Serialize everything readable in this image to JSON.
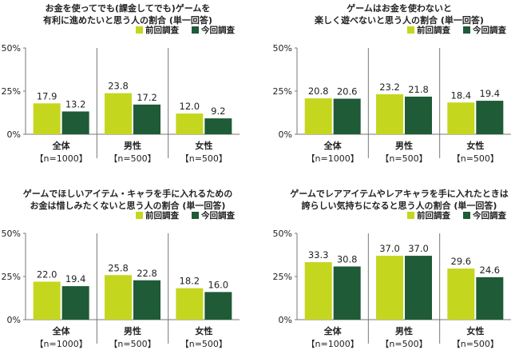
{
  "chart_data": [
    {
      "type": "bar",
      "title": "お金を使ってでも(課金してでも)ゲームを\n有利に進めたいと思う人の割合 (単一回答)",
      "categories": [
        "全体",
        "男性",
        "女性"
      ],
      "sample_sizes": [
        "【n=1000】",
        "【n=500】",
        "【n=500】"
      ],
      "series": [
        {
          "name": "前回調査",
          "values": [
            17.9,
            23.8,
            12.0
          ]
        },
        {
          "name": "今回調査",
          "values": [
            13.2,
            17.2,
            9.2
          ]
        }
      ],
      "y_ticks": [
        "0%",
        "25%",
        "50%"
      ],
      "ylim": [
        0,
        50
      ],
      "legend_position": "top-right"
    },
    {
      "type": "bar",
      "title": "ゲームはお金を使わないと\n楽しく遊べないと思う人の割合 (単一回答)",
      "categories": [
        "全体",
        "男性",
        "女性"
      ],
      "sample_sizes": [
        "【n=1000】",
        "【n=500】",
        "【n=500】"
      ],
      "series": [
        {
          "name": "前回調査",
          "values": [
            20.8,
            23.2,
            18.4
          ]
        },
        {
          "name": "今回調査",
          "values": [
            20.6,
            21.8,
            19.4
          ]
        }
      ],
      "y_ticks": [
        "0%",
        "25%",
        "50%"
      ],
      "ylim": [
        0,
        50
      ],
      "legend_position": "top-right"
    },
    {
      "type": "bar",
      "title": "ゲームでほしいアイテム・キャラを手に入れるための\nお金は惜しみたくないと思う人の割合 (単一回答)",
      "categories": [
        "全体",
        "男性",
        "女性"
      ],
      "sample_sizes": [
        "【n=1000】",
        "【n=500】",
        "【n=500】"
      ],
      "series": [
        {
          "name": "前回調査",
          "values": [
            22.0,
            25.8,
            18.2
          ]
        },
        {
          "name": "今回調査",
          "values": [
            19.4,
            22.8,
            16.0
          ]
        }
      ],
      "y_ticks": [
        "0%",
        "25%",
        "50%"
      ],
      "ylim": [
        0,
        50
      ],
      "legend_position": "top-right"
    },
    {
      "type": "bar",
      "title": "ゲームでレアアイテムやレアキャラを手に入れたときは\n誇らしい気持ちになると思う人の割合 (単一回答)",
      "categories": [
        "全体",
        "男性",
        "女性"
      ],
      "sample_sizes": [
        "【n=1000】",
        "【n=500】",
        "【n=500】"
      ],
      "series": [
        {
          "name": "前回調査",
          "values": [
            33.3,
            37.0,
            29.6
          ]
        },
        {
          "name": "今回調査",
          "values": [
            30.8,
            37.0,
            24.6
          ]
        }
      ],
      "y_ticks": [
        "0%",
        "25%",
        "50%"
      ],
      "ylim": [
        0,
        50
      ],
      "legend_position": "top-right"
    }
  ],
  "colors": {
    "previous": "#c5d61f",
    "current": "#1e5b36",
    "axis": "#777777",
    "text": "#222222"
  }
}
